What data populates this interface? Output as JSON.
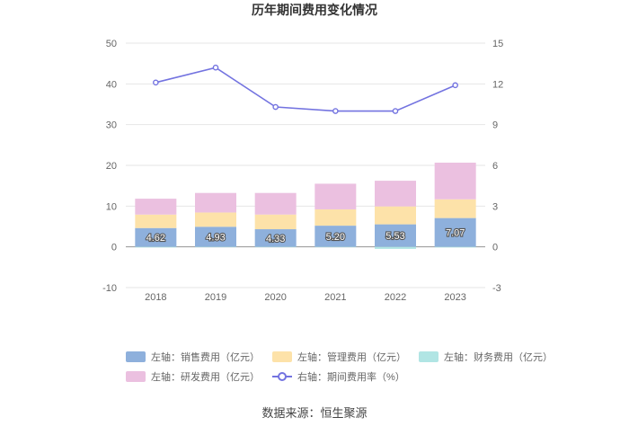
{
  "chart_data": {
    "type": "bar",
    "title": "历年期间费用变化情况",
    "categories": [
      "2018",
      "2019",
      "2020",
      "2021",
      "2022",
      "2023"
    ],
    "left_axis": {
      "min": -10,
      "max": 50,
      "step": 10,
      "ticks": [
        "-10",
        "0",
        "10",
        "20",
        "30",
        "40",
        "50"
      ]
    },
    "right_axis": {
      "min": -3,
      "max": 15,
      "step": 3,
      "ticks": [
        "-3",
        "0",
        "3",
        "6",
        "9",
        "12",
        "15"
      ]
    },
    "series": [
      {
        "name": "左轴：销售费用（亿元）",
        "kind": "bar",
        "axis": "left",
        "color": "#8eb0dc",
        "values": [
          4.62,
          4.93,
          4.33,
          5.2,
          5.53,
          7.07
        ],
        "labels": [
          "4.62",
          "4.93",
          "4.33",
          "5.20",
          "5.53",
          "7.07"
        ]
      },
      {
        "name": "左轴：管理费用（亿元）",
        "kind": "bar",
        "axis": "left",
        "color": "#fde2a9",
        "values": [
          3.3,
          3.5,
          3.6,
          4.0,
          4.4,
          4.6
        ]
      },
      {
        "name": "左轴：财务费用（亿元）",
        "kind": "bar",
        "axis": "left",
        "color": "#b1e5e4",
        "values": [
          -0.15,
          -0.1,
          -0.1,
          -0.1,
          -0.5,
          -0.15
        ]
      },
      {
        "name": "左轴：研发费用（亿元）",
        "kind": "bar",
        "axis": "left",
        "color": "#ebc0e0",
        "values": [
          3.9,
          4.8,
          5.3,
          6.3,
          6.3,
          9.0
        ]
      },
      {
        "name": "右轴：期间费用率（%）",
        "kind": "line",
        "axis": "right",
        "color": "#7373e0",
        "values": [
          12.1,
          13.2,
          10.3,
          10.0,
          10.0,
          11.9
        ]
      }
    ],
    "legend_position": "bottom",
    "source": "数据来源：恒生聚源"
  }
}
